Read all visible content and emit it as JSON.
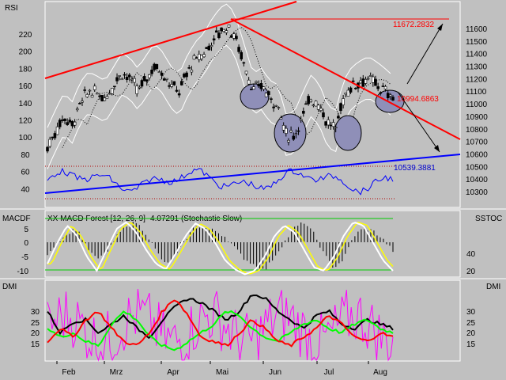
{
  "colors": {
    "background": "#c0c0c0",
    "trendline_red": "#ff0000",
    "trendline_blue": "#0000ff",
    "rsi_line": "#0000ff",
    "bollinger": "#ffffff",
    "macd_hist": "#000000",
    "stoch_main": "#ffffff",
    "stoch_signal": "#ffff00",
    "dmi_black": "#000000",
    "dmi_red": "#ff0000",
    "dmi_green": "#00ff00",
    "dmi_magenta": "#ff00ff",
    "head_fill": "#8f8fb8"
  },
  "chart_data": [
    {
      "type": "candlestick",
      "panel": "price",
      "title": "",
      "left_axis_label": "RSI",
      "left_ticks": [
        "220",
        "200",
        "180",
        "160",
        "140",
        "120",
        "100",
        "80",
        "60",
        "40"
      ],
      "right_ticks": [
        "11600",
        "11500",
        "11400",
        "11300",
        "11200",
        "11100",
        "11000",
        "10900",
        "10800",
        "10700",
        "10600",
        "10500",
        "10400",
        "10300"
      ],
      "ylim": [
        10220,
        11690
      ],
      "annotations": [
        "11672.2832",
        "10994.6863",
        "10539.3881"
      ],
      "x_labels": [
        "Feb",
        "Mrz",
        "Apr",
        "Mai",
        "Jun",
        "Jul",
        "Aug"
      ],
      "close_path": [
        10650,
        10780,
        10900,
        10830,
        11000,
        11100,
        11080,
        11050,
        11150,
        11250,
        11200,
        11100,
        11200,
        11300,
        11250,
        11150,
        11100,
        11250,
        11350,
        11400,
        11500,
        11580,
        11620,
        11500,
        11300,
        11100,
        11150,
        11050,
        11000,
        10750,
        10750,
        10900,
        11050,
        11000,
        10850,
        10800,
        11050,
        11150,
        11180,
        11200,
        11150,
        11100,
        11050
      ]
    },
    {
      "type": "line",
      "panel": "macd",
      "title": "XX MACD Forest [12, 26, 9] -4.07291 (Stochastic Slow)",
      "left_axis_label": "MACDF",
      "right_axis_label": "SSTOC",
      "left_ticks": [
        "5",
        "0",
        "-5",
        "-10"
      ],
      "right_ticks": [
        "40",
        "20"
      ],
      "series": [
        {
          "name": "MACD Forest",
          "values": [
            -4,
            0,
            3,
            5,
            -2,
            -6,
            -4,
            2,
            6,
            7,
            3,
            -3,
            -8,
            -5,
            1,
            6,
            5,
            4,
            2,
            -2,
            -6,
            -8,
            -10,
            -5,
            0,
            5,
            7,
            3,
            -4,
            -9,
            -6,
            2,
            5,
            4,
            1,
            -3
          ]
        },
        {
          "name": "",
          "values": [
            30,
            60,
            85,
            70,
            40,
            20,
            50,
            80,
            90,
            75,
            50,
            30,
            22,
            45,
            70,
            88,
            80,
            60,
            35,
            22,
            15,
            20,
            40,
            70,
            85,
            75,
            50,
            25,
            20,
            40,
            70,
            90,
            85,
            60,
            35,
            20
          ]
        }
      ]
    },
    {
      "type": "line",
      "panel": "dmi",
      "left_axis_label": "DMI",
      "right_axis_label": "DMI",
      "left_ticks": [
        "30",
        "25",
        "20",
        "15"
      ],
      "right_ticks": [
        "30",
        "25",
        "20",
        "15"
      ],
      "series": [
        {
          "name": "",
          "values": [
            30,
            20,
            25,
            26,
            20,
            24,
            28,
            22,
            18,
            26,
            32,
            36,
            34,
            30,
            26,
            30,
            38,
            36,
            30,
            26,
            22,
            28,
            30,
            24,
            22,
            26,
            24,
            22
          ]
        },
        {
          "name": "",
          "values": [
            22,
            18,
            20,
            16,
            14,
            24,
            30,
            26,
            18,
            14,
            12,
            16,
            20,
            24,
            30,
            28,
            22,
            18,
            16,
            20,
            24,
            26,
            22,
            20,
            24,
            26,
            22,
            20
          ]
        },
        {
          "name": "",
          "values": [
            16,
            22,
            18,
            26,
            30,
            22,
            16,
            14,
            20,
            30,
            36,
            28,
            18,
            16,
            14,
            20,
            26,
            22,
            16,
            14,
            18,
            22,
            28,
            24,
            18,
            16,
            20,
            18
          ]
        }
      ]
    }
  ]
}
